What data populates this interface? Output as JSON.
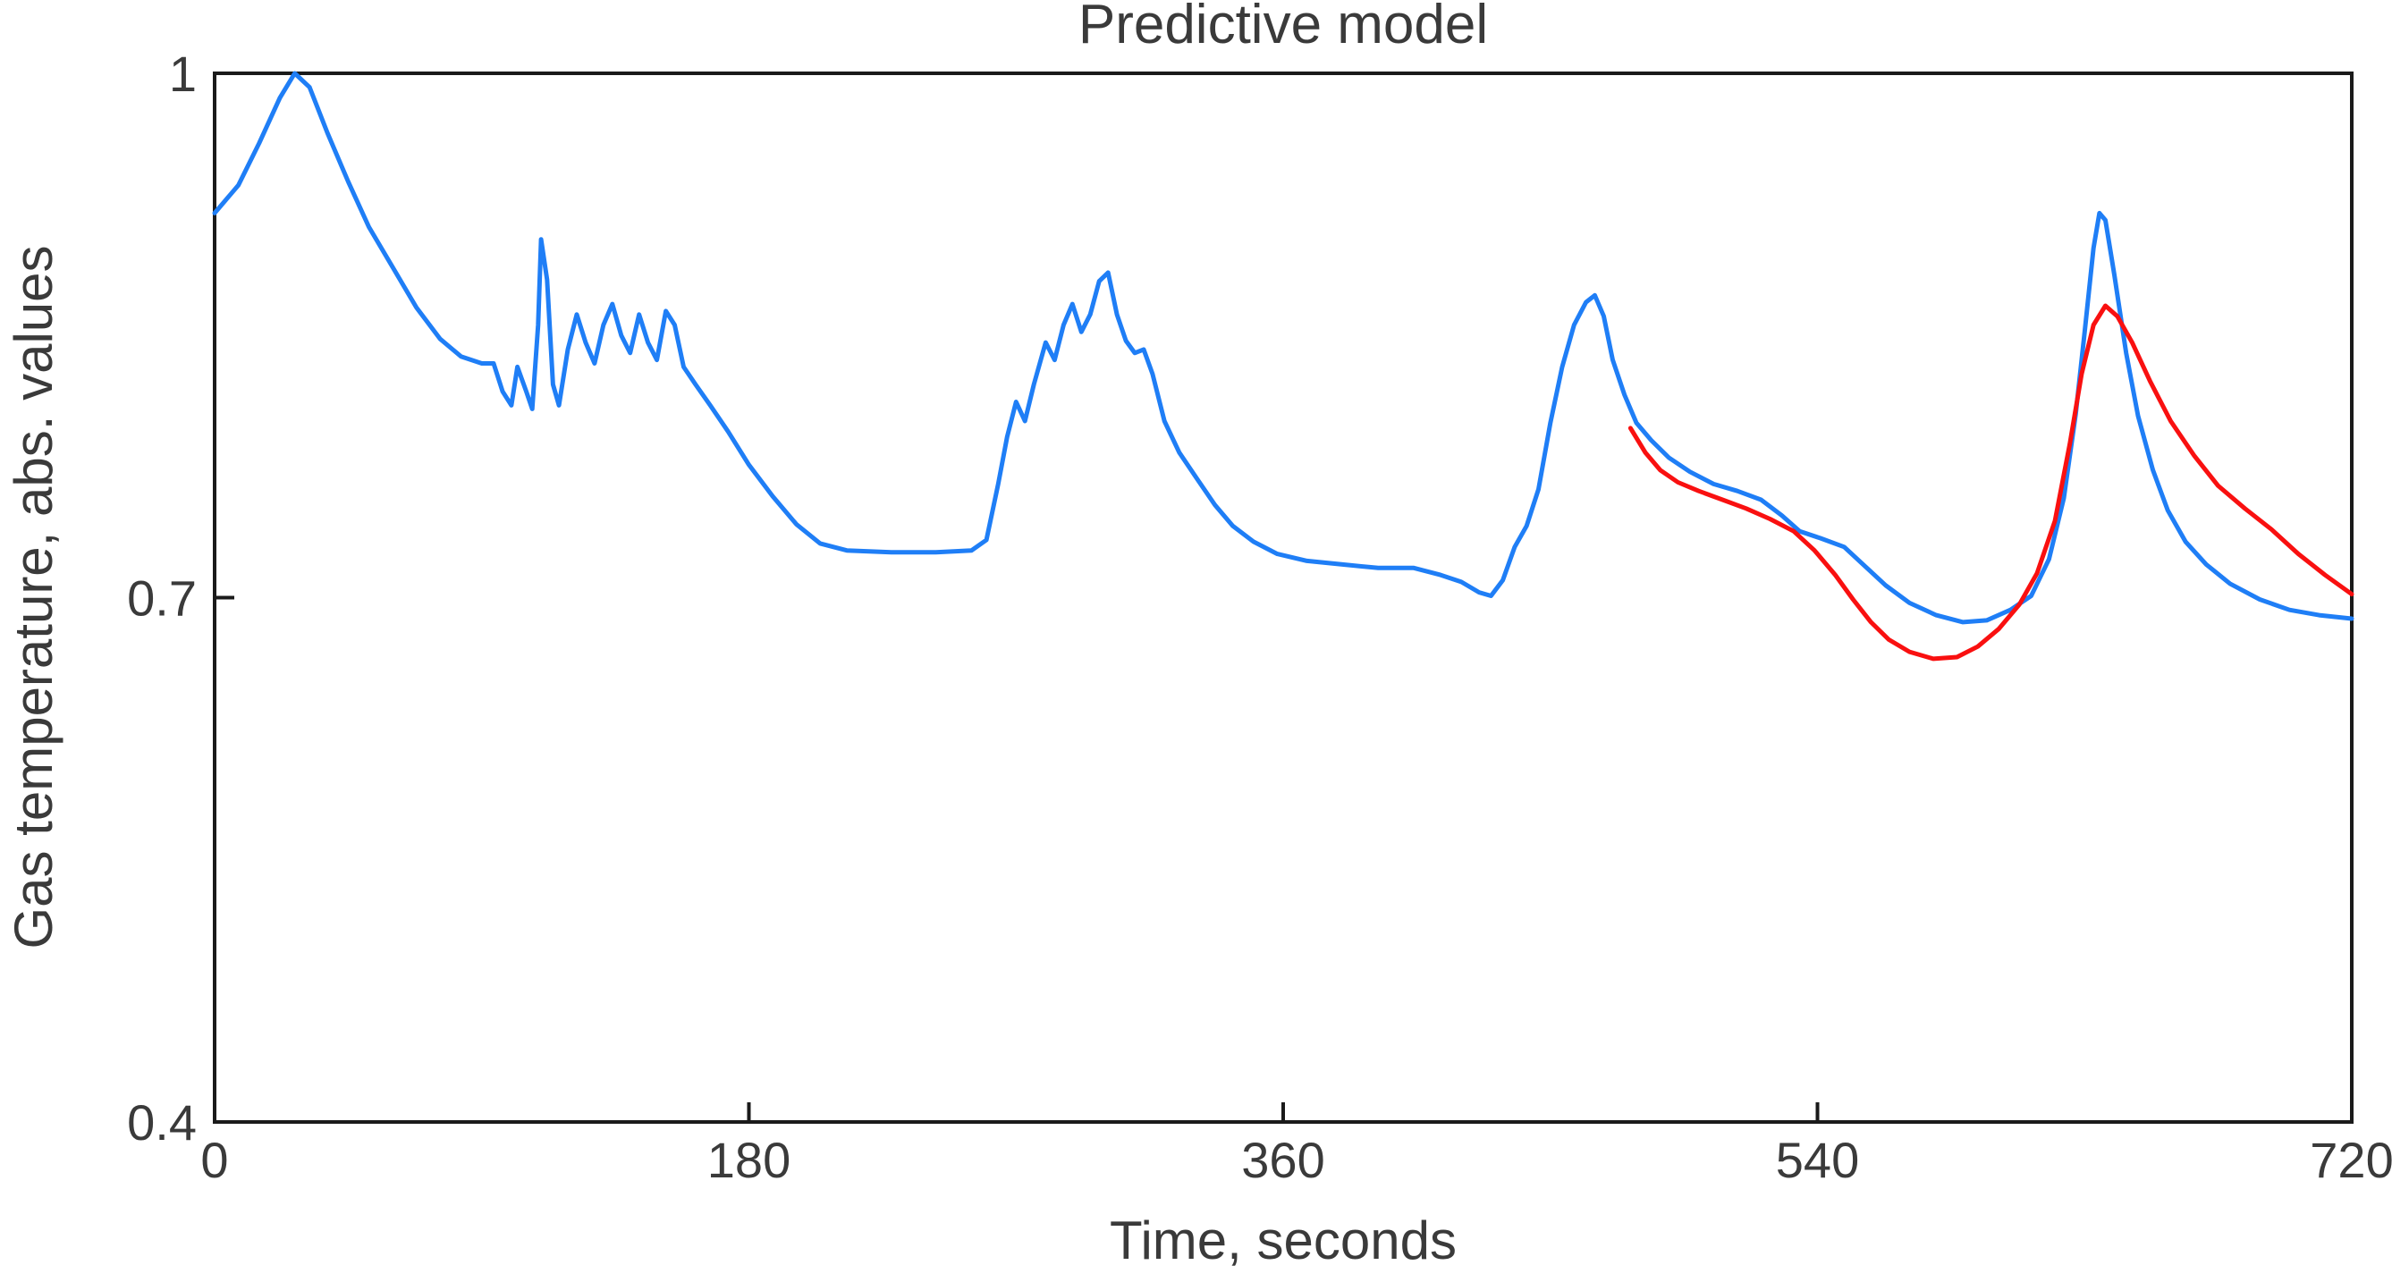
{
  "chart_data": {
    "type": "line",
    "title": "Predictive model",
    "xlabel": "Time, seconds",
    "ylabel": "Gas temperature, abs. values",
    "xlim": [
      0,
      720
    ],
    "ylim": [
      0.4,
      1
    ],
    "grid": false,
    "legend": "none",
    "frame": "full-box",
    "axis_color": "#1a1a1a",
    "xticks": {
      "values": [
        0,
        180,
        360,
        540,
        720
      ],
      "labels": [
        "0",
        "180",
        "360",
        "540",
        "720"
      ]
    },
    "yticks": {
      "values": [
        1,
        0.7,
        0.4
      ],
      "labels": [
        "1",
        "0.7",
        "0.4"
      ]
    },
    "series": [
      {
        "name": "blue-measured-line",
        "color": "#1f7ef6",
        "points": [
          [
            0,
            0.92
          ],
          [
            8,
            0.936
          ],
          [
            15,
            0.96
          ],
          [
            22,
            0.986
          ],
          [
            27,
            1.0
          ],
          [
            32,
            0.992
          ],
          [
            38,
            0.966
          ],
          [
            45,
            0.938
          ],
          [
            52,
            0.912
          ],
          [
            60,
            0.889
          ],
          [
            68,
            0.866
          ],
          [
            76,
            0.848
          ],
          [
            83,
            0.838
          ],
          [
            90,
            0.834
          ],
          [
            94,
            0.834
          ],
          [
            97,
            0.818
          ],
          [
            100,
            0.81
          ],
          [
            102,
            0.832
          ],
          [
            105,
            0.818
          ],
          [
            107,
            0.808
          ],
          [
            109,
            0.856
          ],
          [
            110,
            0.905
          ],
          [
            112,
            0.882
          ],
          [
            114,
            0.822
          ],
          [
            116,
            0.81
          ],
          [
            119,
            0.842
          ],
          [
            122,
            0.862
          ],
          [
            125,
            0.846
          ],
          [
            128,
            0.834
          ],
          [
            131,
            0.856
          ],
          [
            134,
            0.868
          ],
          [
            137,
            0.85
          ],
          [
            140,
            0.84
          ],
          [
            143,
            0.862
          ],
          [
            146,
            0.846
          ],
          [
            149,
            0.836
          ],
          [
            152,
            0.864
          ],
          [
            155,
            0.856
          ],
          [
            158,
            0.832
          ],
          [
            162,
            0.822
          ],
          [
            167,
            0.81
          ],
          [
            173,
            0.795
          ],
          [
            180,
            0.776
          ],
          [
            188,
            0.758
          ],
          [
            196,
            0.742
          ],
          [
            204,
            0.731
          ],
          [
            213,
            0.727
          ],
          [
            228,
            0.726
          ],
          [
            243,
            0.726
          ],
          [
            255,
            0.727
          ],
          [
            260,
            0.733
          ],
          [
            264,
            0.765
          ],
          [
            267,
            0.792
          ],
          [
            270,
            0.812
          ],
          [
            273,
            0.801
          ],
          [
            276,
            0.822
          ],
          [
            280,
            0.846
          ],
          [
            283,
            0.836
          ],
          [
            286,
            0.856
          ],
          [
            289,
            0.868
          ],
          [
            292,
            0.852
          ],
          [
            295,
            0.862
          ],
          [
            298,
            0.881
          ],
          [
            301,
            0.886
          ],
          [
            304,
            0.862
          ],
          [
            307,
            0.847
          ],
          [
            310,
            0.84
          ],
          [
            313,
            0.842
          ],
          [
            316,
            0.828
          ],
          [
            320,
            0.801
          ],
          [
            325,
            0.783
          ],
          [
            331,
            0.768
          ],
          [
            337,
            0.753
          ],
          [
            343,
            0.741
          ],
          [
            350,
            0.732
          ],
          [
            358,
            0.725
          ],
          [
            368,
            0.721
          ],
          [
            380,
            0.719
          ],
          [
            392,
            0.717
          ],
          [
            404,
            0.717
          ],
          [
            413,
            0.713
          ],
          [
            420,
            0.709
          ],
          [
            426,
            0.703
          ],
          [
            430,
            0.701
          ],
          [
            434,
            0.71
          ],
          [
            438,
            0.729
          ],
          [
            442,
            0.741
          ],
          [
            446,
            0.762
          ],
          [
            450,
            0.8
          ],
          [
            454,
            0.832
          ],
          [
            458,
            0.856
          ],
          [
            462,
            0.869
          ],
          [
            465,
            0.873
          ],
          [
            468,
            0.861
          ],
          [
            471,
            0.836
          ],
          [
            475,
            0.816
          ],
          [
            479,
            0.8
          ],
          [
            484,
            0.79
          ],
          [
            490,
            0.78
          ],
          [
            497,
            0.772
          ],
          [
            505,
            0.765
          ],
          [
            513,
            0.761
          ],
          [
            521,
            0.756
          ],
          [
            528,
            0.747
          ],
          [
            534,
            0.738
          ],
          [
            541,
            0.734
          ],
          [
            549,
            0.729
          ],
          [
            556,
            0.718
          ],
          [
            563,
            0.707
          ],
          [
            571,
            0.697
          ],
          [
            580,
            0.69
          ],
          [
            589,
            0.686
          ],
          [
            597,
            0.687
          ],
          [
            605,
            0.693
          ],
          [
            612,
            0.701
          ],
          [
            618,
            0.722
          ],
          [
            623,
            0.757
          ],
          [
            627,
            0.805
          ],
          [
            630,
            0.852
          ],
          [
            633,
            0.9
          ],
          [
            635,
            0.92
          ],
          [
            637,
            0.916
          ],
          [
            640,
            0.885
          ],
          [
            644,
            0.84
          ],
          [
            648,
            0.804
          ],
          [
            653,
            0.773
          ],
          [
            658,
            0.75
          ],
          [
            664,
            0.732
          ],
          [
            671,
            0.719
          ],
          [
            679,
            0.708
          ],
          [
            689,
            0.699
          ],
          [
            699,
            0.693
          ],
          [
            709,
            0.69
          ],
          [
            720,
            0.688
          ]
        ]
      },
      {
        "name": "red-predicted-line",
        "color": "#f91010",
        "points": [
          [
            477,
            0.797
          ],
          [
            482,
            0.783
          ],
          [
            487,
            0.773
          ],
          [
            493,
            0.766
          ],
          [
            500,
            0.761
          ],
          [
            508,
            0.756
          ],
          [
            516,
            0.751
          ],
          [
            524,
            0.745
          ],
          [
            532,
            0.738
          ],
          [
            539,
            0.727
          ],
          [
            546,
            0.713
          ],
          [
            552,
            0.699
          ],
          [
            558,
            0.686
          ],
          [
            564,
            0.676
          ],
          [
            571,
            0.669
          ],
          [
            579,
            0.665
          ],
          [
            587,
            0.666
          ],
          [
            594,
            0.672
          ],
          [
            601,
            0.682
          ],
          [
            608,
            0.696
          ],
          [
            614,
            0.714
          ],
          [
            620,
            0.744
          ],
          [
            625,
            0.788
          ],
          [
            629,
            0.828
          ],
          [
            633,
            0.856
          ],
          [
            637,
            0.867
          ],
          [
            641,
            0.861
          ],
          [
            646,
            0.846
          ],
          [
            652,
            0.824
          ],
          [
            659,
            0.801
          ],
          [
            667,
            0.781
          ],
          [
            675,
            0.764
          ],
          [
            684,
            0.751
          ],
          [
            693,
            0.739
          ],
          [
            702,
            0.725
          ],
          [
            711,
            0.713
          ],
          [
            720,
            0.702
          ]
        ]
      }
    ]
  }
}
